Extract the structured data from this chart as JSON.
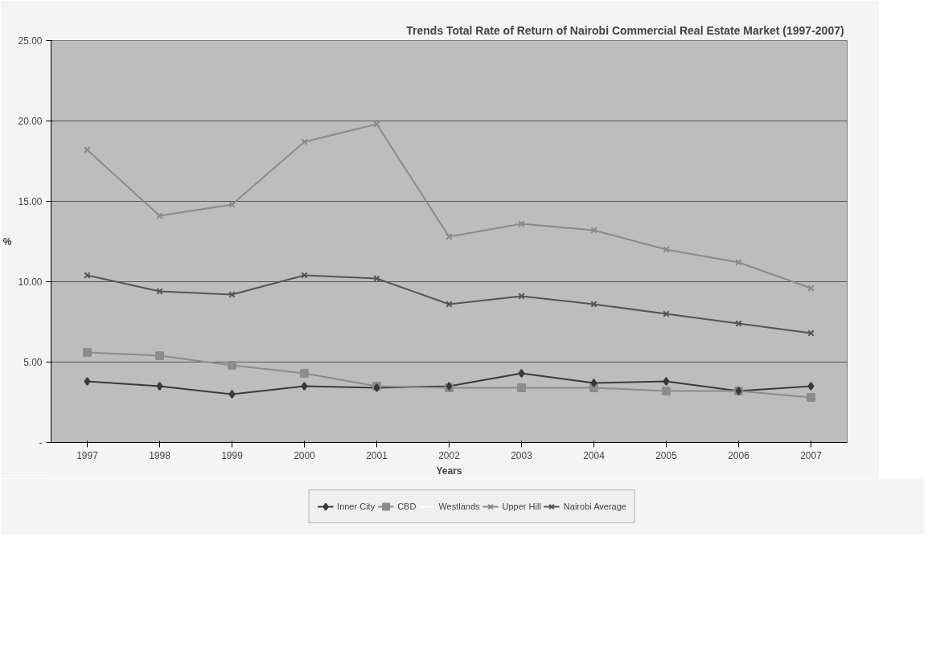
{
  "chart_data": {
    "type": "line",
    "title": "Trends Total Rate of Return of Nairobi Commercial Real Estate Market  (1997-2007)",
    "xlabel": "Years",
    "ylabel": "%",
    "categories": [
      "1997",
      "1998",
      "1999",
      "2000",
      "2001",
      "2002",
      "2003",
      "2004",
      "2005",
      "2006",
      "2007"
    ],
    "ylim": [
      0,
      25
    ],
    "yticks": [
      {
        "value": 0,
        "label": "-"
      },
      {
        "value": 5,
        "label": "5.00"
      },
      {
        "value": 10,
        "label": "10.00"
      },
      {
        "value": 15,
        "label": "15.00"
      },
      {
        "value": 20,
        "label": "20.00"
      },
      {
        "value": 25,
        "label": "25.00"
      }
    ],
    "grid": "y",
    "legend": "bottom",
    "line_style": "solid",
    "series": [
      {
        "name": "Inner City",
        "color": "#3a3a3a",
        "marker": "diamond",
        "values": [
          3.8,
          3.5,
          3.0,
          3.5,
          3.4,
          3.5,
          4.3,
          3.7,
          3.8,
          3.2,
          3.5
        ]
      },
      {
        "name": "CBD",
        "color": "#8c8c8c",
        "marker": "square",
        "values": [
          5.6,
          5.4,
          4.8,
          4.3,
          3.5,
          3.4,
          3.4,
          3.4,
          3.2,
          3.2,
          2.8
        ]
      },
      {
        "name": "Westlands",
        "color": "#ffffff",
        "marker": "none",
        "values": [
          null,
          null,
          null,
          null,
          null,
          null,
          null,
          null,
          null,
          null,
          null
        ]
      },
      {
        "name": "Upper Hill",
        "color": "#8a8a8a",
        "marker": "cross",
        "values": [
          18.2,
          14.1,
          14.8,
          18.7,
          19.8,
          12.8,
          13.6,
          13.2,
          12.0,
          11.2,
          9.6
        ]
      },
      {
        "name": "Nairobi Average",
        "color": "#555555",
        "marker": "cross",
        "values": [
          10.4,
          9.4,
          9.2,
          10.4,
          10.2,
          8.6,
          9.1,
          8.6,
          8.0,
          7.4,
          6.8
        ]
      }
    ]
  }
}
